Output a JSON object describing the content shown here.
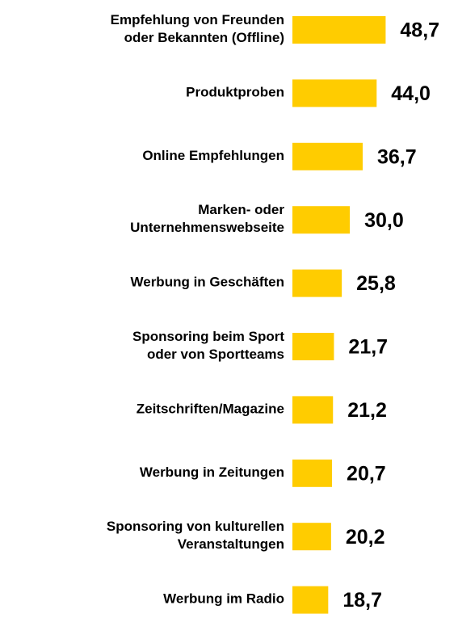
{
  "chart_data": {
    "type": "bar",
    "orientation": "horizontal",
    "color": "#ffcc00",
    "categories": [
      "Empfehlung von Freunden\noder Bekannten (Offline)",
      "Produktproben",
      "Online Empfehlungen",
      "Marken- oder\nUnternehmenswebseite",
      "Werbung in Geschäften",
      "Sponsoring beim Sport\noder von Sportteams",
      "Zeitschriften/Magazine",
      "Werbung in Zeitungen",
      "Sponsoring von kulturellen\nVeranstaltungen",
      "Werbung im Radio"
    ],
    "values": [
      48.7,
      44.0,
      36.7,
      30.0,
      25.8,
      21.7,
      21.2,
      20.7,
      20.2,
      18.7
    ],
    "value_labels": [
      "48,7",
      "44,0",
      "36,7",
      "30,0",
      "25,8",
      "21,7",
      "21,2",
      "20,7",
      "20,2",
      "18,7"
    ]
  }
}
